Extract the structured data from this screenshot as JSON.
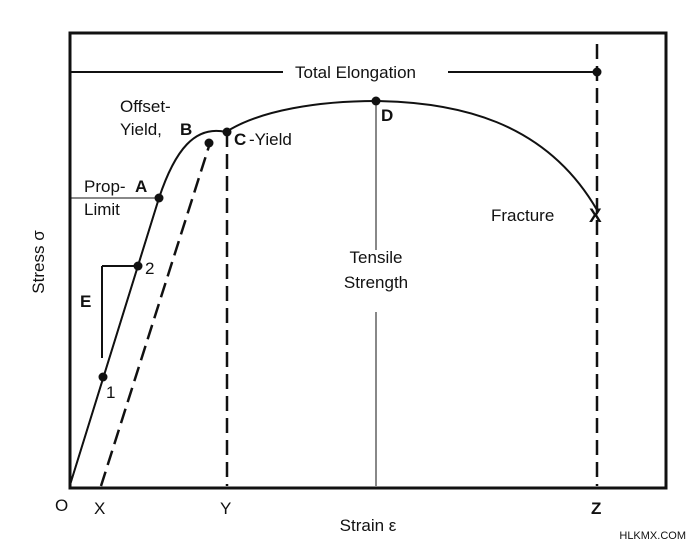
{
  "axes": {
    "x_label": "Strain ε",
    "y_label": "Stress σ",
    "origin": "O",
    "x_ticks": [
      "X",
      "Y",
      "Z"
    ]
  },
  "labels": {
    "total_elongation": "Total Elongation",
    "offset_yield_line1": "Offset-",
    "offset_yield_line2": "Yield,",
    "point_b": "B",
    "point_c": "C",
    "c_yield": "-Yield",
    "prop": "Prop-",
    "point_a": "A",
    "limit": "Limit",
    "point_d": "D",
    "tensile_line1": "Tensile",
    "tensile_line2": "Strength",
    "fracture": "Fracture",
    "point_x": "X",
    "slope_e": "E",
    "point_1": "1",
    "point_2": "2"
  },
  "watermark": "HLKMX.COM",
  "colors": {
    "ink": "#111111",
    "background": "#ffffff"
  }
}
